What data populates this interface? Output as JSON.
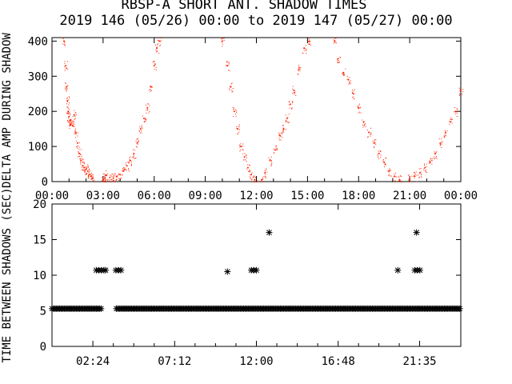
{
  "title": "RBSP-A SHORT ANT. SHADOW TIMES",
  "subtitle": "2019 146 (05/26) 00:00 to 2019 147 (05/27) 00:00",
  "chart_data": [
    {
      "type": "scatter",
      "ylabel": "DELTA AMP DURING SHADOW",
      "xlim": [
        "00:00",
        "24:00"
      ],
      "ylim": [
        0,
        410
      ],
      "yticks": [
        0,
        100,
        200,
        300,
        400
      ],
      "xtick_labels": [
        "00:00",
        "03:00",
        "06:00",
        "09:00",
        "12:00",
        "15:00",
        "18:00",
        "21:00",
        "00:00"
      ],
      "point_color": "#ff2200",
      "grid": false,
      "series": [
        {
          "points": [
            [
              0.7,
              400
            ],
            [
              0.8,
              330
            ],
            [
              0.85,
              270
            ],
            [
              0.9,
              230
            ],
            [
              0.95,
              200
            ],
            [
              1.0,
              185
            ],
            [
              1.05,
              175
            ],
            [
              1.1,
              165
            ],
            [
              1.2,
              160
            ],
            [
              1.3,
              190
            ],
            [
              1.4,
              140
            ],
            [
              1.5,
              110
            ],
            [
              1.6,
              80
            ],
            [
              1.7,
              60
            ],
            [
              1.8,
              45
            ],
            [
              1.9,
              40
            ],
            [
              2.0,
              35
            ],
            [
              2.1,
              30
            ],
            [
              2.2,
              20
            ],
            [
              2.3,
              15
            ],
            [
              2.4,
              10
            ],
            [
              3.0,
              5
            ],
            [
              3.1,
              10
            ],
            [
              3.2,
              18
            ],
            [
              3.4,
              12
            ],
            [
              3.6,
              10
            ],
            [
              3.8,
              15
            ],
            [
              4.0,
              20
            ],
            [
              4.2,
              30
            ],
            [
              4.4,
              45
            ],
            [
              4.6,
              60
            ],
            [
              4.8,
              80
            ],
            [
              5.0,
              110
            ],
            [
              5.2,
              150
            ],
            [
              5.4,
              180
            ],
            [
              5.6,
              210
            ],
            [
              5.8,
              270
            ],
            [
              6.0,
              330
            ],
            [
              6.15,
              380
            ],
            [
              6.3,
              400
            ],
            [
              10.0,
              400
            ],
            [
              10.3,
              330
            ],
            [
              10.5,
              270
            ],
            [
              10.7,
              200
            ],
            [
              10.9,
              150
            ],
            [
              11.1,
              100
            ],
            [
              11.3,
              70
            ],
            [
              11.5,
              40
            ],
            [
              11.7,
              20
            ],
            [
              11.9,
              5
            ],
            [
              12.3,
              5
            ],
            [
              12.5,
              25
            ],
            [
              12.8,
              60
            ],
            [
              13.1,
              90
            ],
            [
              13.4,
              130
            ],
            [
              13.6,
              150
            ],
            [
              13.8,
              180
            ],
            [
              14.0,
              220
            ],
            [
              14.2,
              260
            ],
            [
              14.5,
              320
            ],
            [
              14.8,
              380
            ],
            [
              15.1,
              400
            ],
            [
              16.6,
              400
            ],
            [
              16.8,
              350
            ],
            [
              17.1,
              310
            ],
            [
              17.4,
              290
            ],
            [
              17.7,
              250
            ],
            [
              18.0,
              210
            ],
            [
              18.3,
              170
            ],
            [
              18.6,
              140
            ],
            [
              18.9,
              110
            ],
            [
              19.2,
              80
            ],
            [
              19.5,
              55
            ],
            [
              19.8,
              30
            ],
            [
              20.1,
              15
            ],
            [
              20.4,
              5
            ],
            [
              21.0,
              8
            ],
            [
              21.3,
              15
            ],
            [
              21.6,
              25
            ],
            [
              21.9,
              40
            ],
            [
              22.2,
              55
            ],
            [
              22.5,
              80
            ],
            [
              22.8,
              110
            ],
            [
              23.1,
              140
            ],
            [
              23.4,
              170
            ],
            [
              23.7,
              200
            ],
            [
              24.0,
              260
            ]
          ]
        }
      ]
    },
    {
      "type": "scatter",
      "ylabel": "TIME BETWEEN SHADOWS (SEC)",
      "xlim": [
        0,
        24
      ],
      "ylim": [
        0,
        20
      ],
      "yticks": [
        0,
        5,
        10,
        15,
        20
      ],
      "xtick_labels": [
        "02:24",
        "07:12",
        "12:00",
        "16:48",
        "21:35"
      ],
      "point_color": "#000000",
      "grid": false,
      "series": [
        {
          "baseline_value": 5.3,
          "baseline_range": [
            0.0,
            24.0
          ],
          "baseline_gaps": [
            [
              2.9,
              3.7
            ]
          ],
          "points": [
            [
              2.6,
              10.7
            ],
            [
              2.75,
              10.7
            ],
            [
              2.9,
              10.7
            ],
            [
              3.05,
              10.7
            ],
            [
              3.15,
              10.7
            ],
            [
              3.75,
              10.7
            ],
            [
              3.9,
              10.7
            ],
            [
              4.05,
              10.7
            ],
            [
              10.3,
              10.5
            ],
            [
              11.7,
              10.7
            ],
            [
              11.85,
              10.7
            ],
            [
              12.0,
              10.7
            ],
            [
              12.75,
              16.0
            ],
            [
              20.3,
              10.7
            ],
            [
              21.3,
              10.7
            ],
            [
              21.45,
              10.7
            ],
            [
              21.6,
              10.7
            ],
            [
              21.4,
              16.0
            ]
          ]
        }
      ]
    }
  ]
}
